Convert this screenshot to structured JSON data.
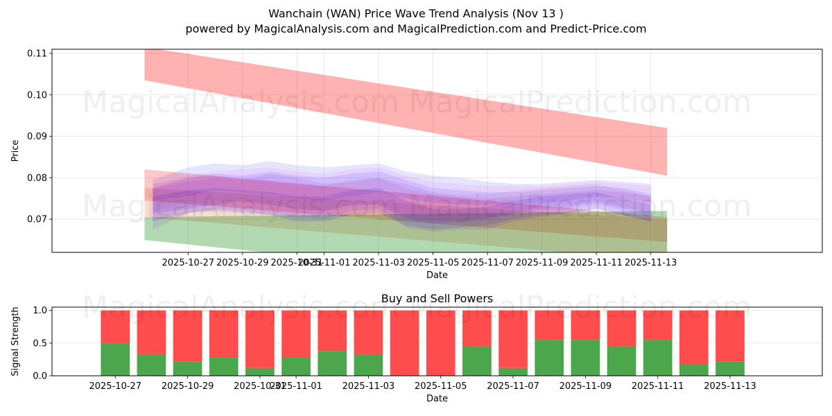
{
  "title_line1": "Wanchain (WAN) Price Wave Trend Analysis (Nov 13 )",
  "title_line2": "powered by MagicalAnalysis.com and MagicalPrediction.com and Predict-Price.com",
  "watermarks": [
    "MagicalAnalysis.com",
    "MagicalPrediction.com"
  ],
  "chart_data": [
    {
      "type": "area",
      "name": "price-wave-chart",
      "xlabel": "Date",
      "ylabel": "Price",
      "ylim": [
        0.062,
        0.111
      ],
      "yticks": [
        0.07,
        0.08,
        0.09,
        0.1,
        0.11
      ],
      "ytick_labels": [
        "0.07",
        "0.08",
        "0.09",
        "0.10",
        "0.11"
      ],
      "xlim": [
        -5.0,
        23.3
      ],
      "xticks": [
        {
          "x": 0,
          "label": "2025-10-27"
        },
        {
          "x": 2,
          "label": "2025-10-29"
        },
        {
          "x": 4,
          "label": "2025-10-31"
        },
        {
          "x": 5,
          "label": "2025-11-01"
        },
        {
          "x": 7,
          "label": "2025-11-03"
        },
        {
          "x": 9,
          "label": "2025-11-05"
        },
        {
          "x": 11,
          "label": "2025-11-07"
        },
        {
          "x": 13,
          "label": "2025-11-09"
        },
        {
          "x": 15,
          "label": "2025-11-11"
        },
        {
          "x": 17,
          "label": "2025-11-13"
        }
      ],
      "grid": true,
      "trend_bands": [
        {
          "color": "#ff0000",
          "opacity": 0.3,
          "x": [
            -1.6,
            17.6
          ],
          "lower": [
            0.1035,
            0.0805
          ],
          "upper": [
            0.1115,
            0.092
          ]
        },
        {
          "color": "#ff0000",
          "opacity": 0.22,
          "x": [
            -1.6,
            17.6
          ],
          "lower": [
            0.0745,
            0.0645
          ],
          "upper": [
            0.082,
            0.0705
          ]
        },
        {
          "color": "#e06030",
          "opacity": 0.22,
          "x": [
            -1.6,
            17.6
          ],
          "lower": [
            0.0705,
            0.06
          ],
          "upper": [
            0.0775,
            0.07
          ]
        },
        {
          "color": "#008000",
          "opacity": 0.3,
          "x": [
            -1.6,
            17.6
          ],
          "lower": [
            0.065,
            0.052
          ],
          "upper": [
            0.0705,
            0.072
          ]
        }
      ],
      "wave_bands": [
        {
          "color": "#0000ff",
          "opacity": 0.1,
          "x": [
            -1.3,
            0,
            1,
            2,
            3,
            4,
            5,
            6,
            7,
            8,
            9,
            10,
            11,
            12,
            13,
            14,
            15,
            16,
            17
          ],
          "lower": [
            0.0745,
            0.0755,
            0.077,
            0.0765,
            0.076,
            0.075,
            0.0745,
            0.0755,
            0.0765,
            0.075,
            0.074,
            0.0735,
            0.0735,
            0.0735,
            0.074,
            0.0745,
            0.0755,
            0.075,
            0.074
          ],
          "upper": [
            0.0795,
            0.0825,
            0.0835,
            0.083,
            0.084,
            0.083,
            0.0825,
            0.083,
            0.0835,
            0.0815,
            0.0805,
            0.08,
            0.079,
            0.0785,
            0.0785,
            0.079,
            0.0795,
            0.079,
            0.0785
          ]
        },
        {
          "color": "#0000ff",
          "opacity": 0.1,
          "x": [
            -1.3,
            0,
            1,
            2,
            3,
            4,
            5,
            6,
            7,
            8,
            9,
            10,
            11,
            12,
            13,
            14,
            15,
            16,
            17
          ],
          "lower": [
            0.0715,
            0.0725,
            0.0735,
            0.0745,
            0.0735,
            0.0725,
            0.072,
            0.0735,
            0.0735,
            0.07,
            0.069,
            0.0695,
            0.07,
            0.0715,
            0.0725,
            0.073,
            0.074,
            0.0725,
            0.0715
          ],
          "upper": [
            0.0775,
            0.08,
            0.081,
            0.0805,
            0.0815,
            0.0805,
            0.08,
            0.081,
            0.0815,
            0.0795,
            0.0775,
            0.077,
            0.0765,
            0.0765,
            0.077,
            0.0775,
            0.078,
            0.0775,
            0.076
          ]
        },
        {
          "color": "#8000c0",
          "opacity": 0.1,
          "x": [
            -1.3,
            0,
            1,
            2,
            3,
            4,
            5,
            6,
            7,
            8,
            9,
            10,
            11,
            12,
            13,
            14,
            15,
            16,
            17
          ],
          "lower": [
            0.0675,
            0.0715,
            0.0725,
            0.072,
            0.071,
            0.0705,
            0.07,
            0.072,
            0.0725,
            0.068,
            0.067,
            0.0675,
            0.0675,
            0.0695,
            0.0705,
            0.0715,
            0.0725,
            0.071,
            0.0695
          ],
          "upper": [
            0.0775,
            0.079,
            0.08,
            0.0795,
            0.081,
            0.08,
            0.0785,
            0.079,
            0.08,
            0.0785,
            0.0765,
            0.0755,
            0.075,
            0.0755,
            0.076,
            0.0765,
            0.077,
            0.0765,
            0.0755
          ]
        },
        {
          "color": "#ff00ff",
          "opacity": 0.07,
          "x": [
            -1.3,
            0,
            1,
            2,
            3,
            4,
            5,
            6,
            7,
            8,
            9,
            10,
            11,
            12,
            13,
            14,
            15,
            16,
            17
          ],
          "lower": [
            0.0705,
            0.073,
            0.0735,
            0.0725,
            0.072,
            0.071,
            0.0715,
            0.073,
            0.0735,
            0.0705,
            0.0695,
            0.0695,
            0.07,
            0.0715,
            0.072,
            0.0725,
            0.0735,
            0.072,
            0.0705
          ],
          "upper": [
            0.0785,
            0.0805,
            0.0815,
            0.082,
            0.0825,
            0.0815,
            0.081,
            0.082,
            0.0825,
            0.0805,
            0.079,
            0.0785,
            0.078,
            0.078,
            0.078,
            0.0785,
            0.079,
            0.0785,
            0.078
          ]
        },
        {
          "color": "#0000ff",
          "opacity": 0.12,
          "x": [
            -1.3,
            0,
            1,
            2,
            3,
            4,
            5,
            6,
            7,
            8,
            9,
            10,
            11,
            12,
            13,
            14,
            15,
            16,
            17
          ],
          "lower": [
            0.0695,
            0.0715,
            0.072,
            0.0715,
            0.071,
            0.0695,
            0.0695,
            0.071,
            0.0715,
            0.0685,
            0.0675,
            0.068,
            0.0685,
            0.07,
            0.071,
            0.0715,
            0.0725,
            0.071,
            0.0695
          ],
          "upper": [
            0.0755,
            0.077,
            0.0775,
            0.077,
            0.0765,
            0.0755,
            0.0755,
            0.077,
            0.0775,
            0.0745,
            0.0725,
            0.0725,
            0.073,
            0.0745,
            0.0755,
            0.076,
            0.0765,
            0.075,
            0.0735
          ]
        },
        {
          "color": "#c04060",
          "opacity": 0.1,
          "x": [
            -1.3,
            0,
            1,
            2,
            3,
            4,
            5,
            6,
            7,
            8,
            9,
            10,
            11,
            12,
            13,
            14,
            15,
            16,
            17
          ],
          "lower": [
            0.072,
            0.074,
            0.0745,
            0.074,
            0.0735,
            0.0725,
            0.072,
            0.0735,
            0.074,
            0.071,
            0.07,
            0.07,
            0.0705,
            0.072,
            0.073,
            0.0735,
            0.0745,
            0.073,
            0.0715
          ],
          "upper": [
            0.0785,
            0.08,
            0.0805,
            0.0795,
            0.079,
            0.078,
            0.078,
            0.0795,
            0.08,
            0.0775,
            0.076,
            0.076,
            0.076,
            0.077,
            0.0775,
            0.078,
            0.0785,
            0.077,
            0.0755
          ]
        }
      ]
    },
    {
      "type": "bar",
      "name": "buy-sell-powers",
      "title": "Buy and Sell Powers",
      "xlabel": "Date",
      "ylabel": "Signal Strength",
      "ylim": [
        0,
        1.05
      ],
      "yticks": [
        0.0,
        0.5,
        1.0
      ],
      "ytick_labels": [
        "0.0",
        "0.5",
        "1.0"
      ],
      "xlim": [
        -1.75,
        19.55
      ],
      "xticks": [
        {
          "x": 0,
          "label": "2025-10-27"
        },
        {
          "x": 2,
          "label": "2025-10-29"
        },
        {
          "x": 4,
          "label": "2025-10-31"
        },
        {
          "x": 5,
          "label": "2025-11-01"
        },
        {
          "x": 7,
          "label": "2025-11-03"
        },
        {
          "x": 9,
          "label": "2025-11-05"
        },
        {
          "x": 11,
          "label": "2025-11-07"
        },
        {
          "x": 13,
          "label": "2025-11-09"
        },
        {
          "x": 15,
          "label": "2025-11-11"
        },
        {
          "x": 17,
          "label": "2025-11-13"
        }
      ],
      "grid": true,
      "bar_width": 0.8,
      "buy_color": "#4ca64c",
      "sell_color": "#ff4c4c",
      "x": [
        0,
        1,
        2,
        3,
        4,
        5,
        6,
        7,
        8,
        9,
        10,
        11,
        12,
        13,
        14,
        15,
        16,
        17
      ],
      "buy": [
        0.5,
        0.33,
        0.22,
        0.28,
        0.12,
        0.28,
        0.38,
        0.33,
        0.0,
        0.0,
        0.45,
        0.12,
        0.55,
        0.55,
        0.45,
        0.55,
        0.17,
        0.22
      ],
      "sell": [
        0.5,
        0.67,
        0.78,
        0.72,
        0.88,
        0.72,
        0.62,
        0.67,
        1.0,
        1.0,
        0.55,
        0.88,
        0.45,
        0.45,
        0.55,
        0.45,
        0.83,
        0.78
      ]
    }
  ]
}
